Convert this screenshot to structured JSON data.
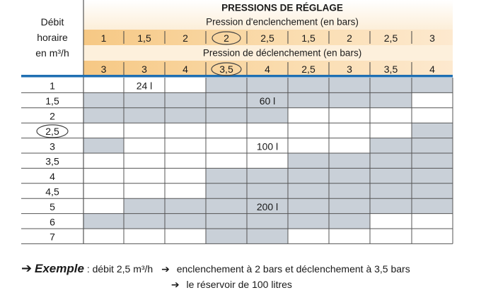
{
  "table": {
    "row_header": [
      "Débit",
      "horaire",
      "en m³/h"
    ],
    "main_title": "PRESSIONS DE RÉGLAGE",
    "enclenchement_title": "Pression d'enclenchement (en bars)",
    "declenchement_title": "Pression de déclenchement (en bars)",
    "enclenchement": [
      "1",
      "1,5",
      "2",
      "2",
      "2,5",
      "1,5",
      "2",
      "2,5",
      "3"
    ],
    "declenchement": [
      "3",
      "3",
      "4",
      "3,5",
      "4",
      "2,5",
      "3",
      "3,5",
      "4"
    ],
    "highlight_column_index": 3,
    "rows": [
      "1",
      "1,5",
      "2",
      "2,5",
      "3",
      "3,5",
      "4",
      "4,5",
      "5",
      "6",
      "7"
    ],
    "highlight_row_index": 3,
    "shading": [
      [
        0,
        0,
        0,
        1,
        1,
        1,
        1,
        1,
        1
      ],
      [
        1,
        1,
        1,
        1,
        1,
        1,
        1,
        1,
        0
      ],
      [
        1,
        1,
        1,
        1,
        1,
        0,
        0,
        0,
        0
      ],
      [
        0,
        0,
        0,
        0,
        0,
        0,
        0,
        0,
        1
      ],
      [
        1,
        0,
        0,
        0,
        0,
        0,
        0,
        1,
        1
      ],
      [
        0,
        0,
        0,
        0,
        0,
        1,
        1,
        1,
        1
      ],
      [
        0,
        0,
        0,
        1,
        1,
        1,
        1,
        1,
        1
      ],
      [
        0,
        0,
        0,
        1,
        1,
        1,
        1,
        1,
        1
      ],
      [
        0,
        1,
        1,
        1,
        1,
        1,
        1,
        1,
        1
      ],
      [
        1,
        1,
        1,
        1,
        1,
        1,
        1,
        0,
        0
      ],
      [
        0,
        0,
        0,
        1,
        1,
        0,
        0,
        0,
        0
      ]
    ],
    "volume_labels": [
      {
        "row": 0,
        "col": 1,
        "text": "24 l"
      },
      {
        "row": 1,
        "col": 4,
        "text": "60 l"
      },
      {
        "row": 4,
        "col": 4,
        "text": "100 l"
      },
      {
        "row": 8,
        "col": 4,
        "text": "200 l"
      }
    ],
    "colors": {
      "header_band": "#f8d39b",
      "header_light": "#fdf0dc",
      "shaded_cell": "#c9d0d8",
      "blue_rule": "#1f6fb2",
      "grid_line": "#555555"
    }
  },
  "example": {
    "label": "Exemple",
    "debit": ": débit 2,5 m³/h",
    "result_1": "enclenchement à 2 bars et déclenchement à 3,5 bars",
    "result_2": "le réservoir de 100 litres"
  }
}
